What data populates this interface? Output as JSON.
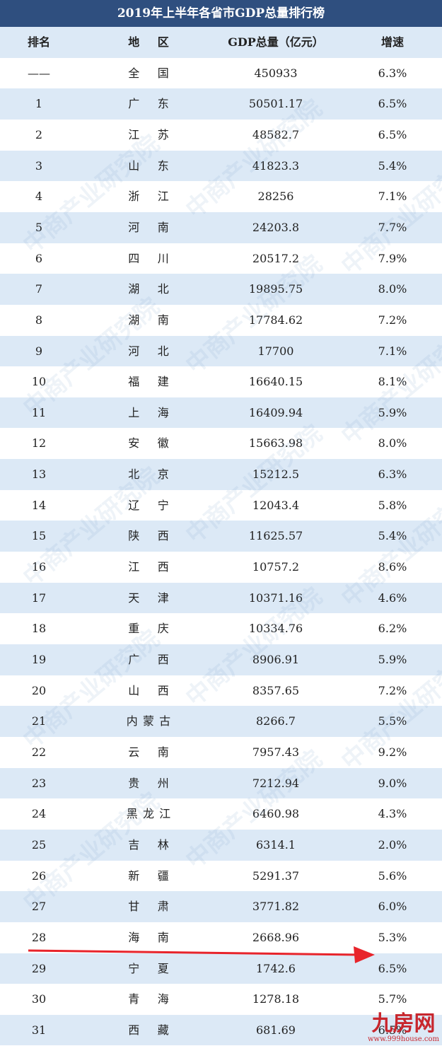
{
  "title": "2019年上半年各省市GDP总量排行榜",
  "table": {
    "header": [
      "排名",
      "地区",
      "GDP总量（亿元）",
      "增速"
    ],
    "rows": [
      [
        "——",
        "全国",
        "450933",
        "6.3%"
      ],
      [
        "1",
        "广东",
        "50501.17",
        "6.5%"
      ],
      [
        "2",
        "江苏",
        "48582.7",
        "6.5%"
      ],
      [
        "3",
        "山东",
        "41823.3",
        "5.4%"
      ],
      [
        "4",
        "浙江",
        "28256",
        "7.1%"
      ],
      [
        "5",
        "河南",
        "24203.8",
        "7.7%"
      ],
      [
        "6",
        "四川",
        "20517.2",
        "7.9%"
      ],
      [
        "7",
        "湖北",
        "19895.75",
        "8.0%"
      ],
      [
        "8",
        "湖南",
        "17784.62",
        "7.2%"
      ],
      [
        "9",
        "河北",
        "17700",
        "7.1%"
      ],
      [
        "10",
        "福建",
        "16640.15",
        "8.1%"
      ],
      [
        "11",
        "上海",
        "16409.94",
        "5.9%"
      ],
      [
        "12",
        "安徽",
        "15663.98",
        "8.0%"
      ],
      [
        "13",
        "北京",
        "15212.5",
        "6.3%"
      ],
      [
        "14",
        "辽宁",
        "12043.4",
        "5.8%"
      ],
      [
        "15",
        "陕西",
        "11625.57",
        "5.4%"
      ],
      [
        "16",
        "江西",
        "10757.2",
        "8.6%"
      ],
      [
        "17",
        "天津",
        "10371.16",
        "4.6%"
      ],
      [
        "18",
        "重庆",
        "10334.76",
        "6.2%"
      ],
      [
        "19",
        "广西",
        "8906.91",
        "5.9%"
      ],
      [
        "20",
        "山西",
        "8357.65",
        "7.2%"
      ],
      [
        "21",
        "内蒙古",
        "8266.7",
        "5.5%"
      ],
      [
        "22",
        "云南",
        "7957.43",
        "9.2%"
      ],
      [
        "23",
        "贵州",
        "7212.94",
        "9.0%"
      ],
      [
        "24",
        "黑龙江",
        "6460.98",
        "4.3%"
      ],
      [
        "25",
        "吉林",
        "6314.1",
        "2.0%"
      ],
      [
        "26",
        "新疆",
        "5291.37",
        "5.6%"
      ],
      [
        "27",
        "甘肃",
        "3771.82",
        "6.0%"
      ],
      [
        "28",
        "海南",
        "2668.96",
        "5.3%"
      ],
      [
        "29",
        "宁夏",
        "1742.6",
        "6.5%"
      ],
      [
        "30",
        "青海",
        "1278.18",
        "5.7%"
      ],
      [
        "31",
        "西藏",
        "681.69",
        "6.5%"
      ]
    ]
  },
  "watermark": "中商产业研究院",
  "logo": {
    "name": "九房网",
    "url": "www.999house.com"
  }
}
